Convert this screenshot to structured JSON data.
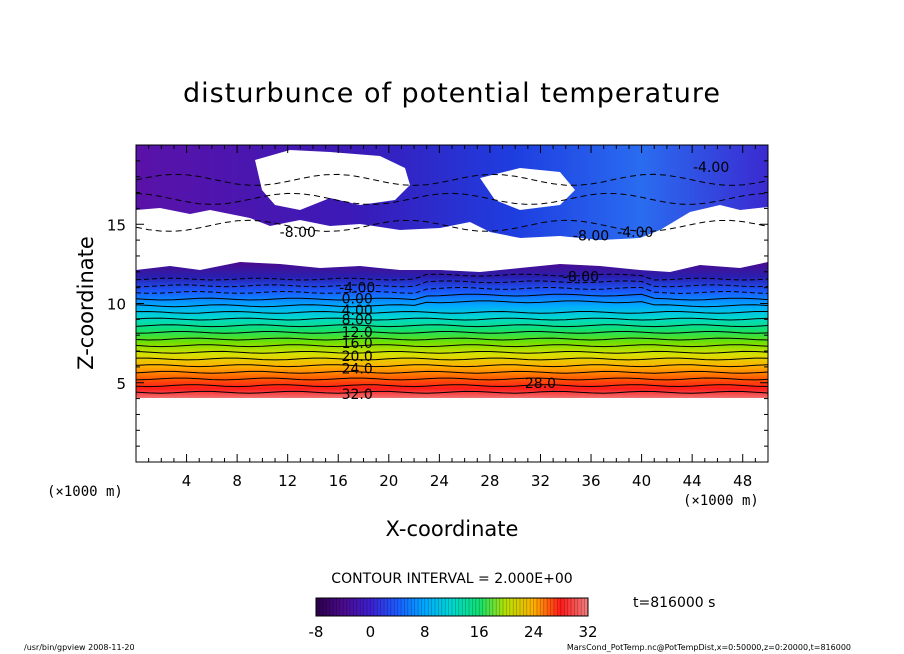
{
  "chart_data": {
    "type": "heatmap",
    "title": "disturbunce of potential temperature",
    "xlabel": "X-coordinate",
    "ylabel": "Z-coordinate",
    "x_unit": "(×1000 m)",
    "y_unit": "(×1000 m)",
    "xlim": [
      0,
      50
    ],
    "ylim": [
      0,
      20
    ],
    "x_ticks": [
      4,
      8,
      12,
      16,
      20,
      24,
      28,
      32,
      36,
      40,
      44,
      48
    ],
    "y_ticks": [
      5,
      10,
      15
    ],
    "contour_interval_text": "CONTOUR INTERVAL = 2.000E+00",
    "time_text": "t=816000 s",
    "colorbar": {
      "min": -8,
      "max": 32,
      "tick_labels": [
        "-8",
        "0",
        "8",
        "16",
        "24",
        "32"
      ],
      "tick_values": [
        -8,
        0,
        8,
        16,
        24,
        32
      ]
    },
    "palette": [
      "#2a004a",
      "#4b0a8c",
      "#3c1fd0",
      "#1a5cff",
      "#00a8ff",
      "#00d8d0",
      "#10e070",
      "#70e000",
      "#d8e000",
      "#ffb000",
      "#ff6000",
      "#ff1a1a",
      "#f06060"
    ],
    "contour_labels": [
      {
        "text": "-4.00",
        "x": 45.5,
        "z": 18.6
      },
      {
        "text": "-8.00",
        "x": 12.8,
        "z": 14.5
      },
      {
        "text": "-8.00",
        "x": 36.0,
        "z": 14.3
      },
      {
        "text": "-4.00",
        "x": 39.5,
        "z": 14.5
      },
      {
        "text": "-8.00",
        "x": 35.2,
        "z": 11.7
      },
      {
        "text": "-4.00",
        "x": 17.5,
        "z": 11.0
      },
      {
        "text": "0.00",
        "x": 17.5,
        "z": 10.3
      },
      {
        "text": "4.00",
        "x": 17.5,
        "z": 9.6
      },
      {
        "text": "8.00",
        "x": 17.5,
        "z": 9.0
      },
      {
        "text": "12.0",
        "x": 17.5,
        "z": 8.2
      },
      {
        "text": "16.0",
        "x": 17.5,
        "z": 7.5
      },
      {
        "text": "20.0",
        "x": 17.5,
        "z": 6.7
      },
      {
        "text": "24.0",
        "x": 17.5,
        "z": 5.9
      },
      {
        "text": "28.0",
        "x": 32.0,
        "z": 5.0
      },
      {
        "text": "32.0",
        "x": 17.5,
        "z": 4.3
      }
    ]
  },
  "footer": {
    "left": "/usr/bin/gpview   2008-11-20",
    "right": "MarsCond_PotTemp.nc@PotTempDist,x=0:50000,z=0:20000,t=816000"
  }
}
